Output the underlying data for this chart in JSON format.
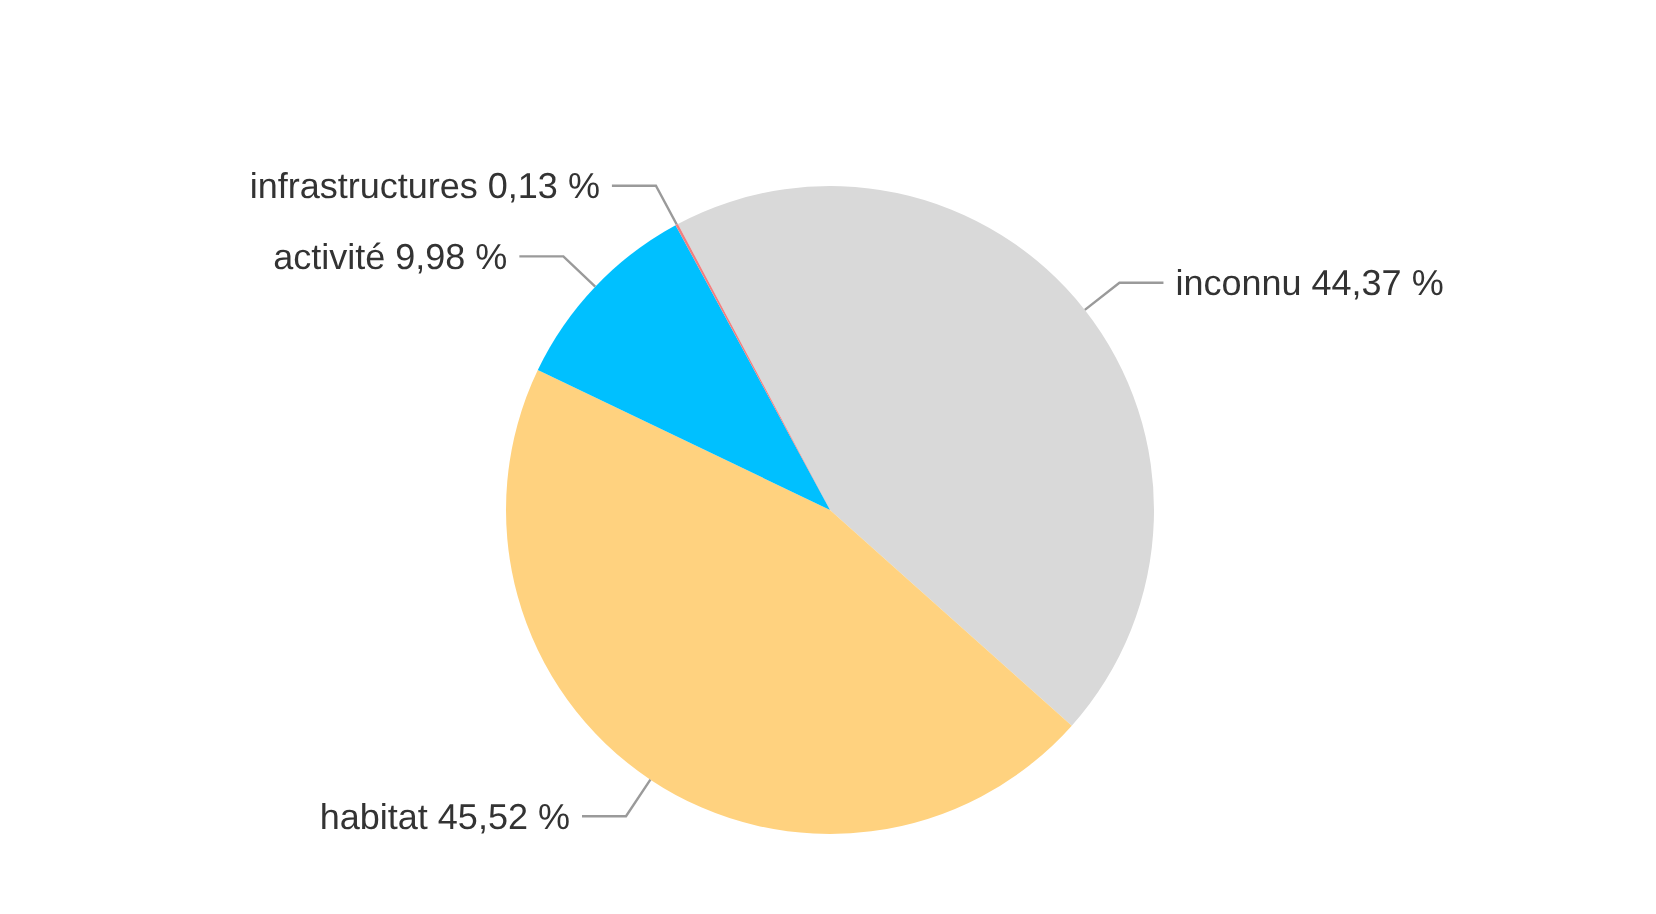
{
  "chart_data": {
    "type": "pie",
    "categories": [
      "inconnu",
      "habitat",
      "activité",
      "infrastructures"
    ],
    "values": [
      44.37,
      45.52,
      9.98,
      0.13
    ],
    "value_labels": [
      "44,37 %",
      "45,52 %",
      "9,98 %",
      "0,13 %"
    ],
    "colors": [
      "#d9d9d9",
      "#ffd27f",
      "#00c0ff",
      "#f08080"
    ],
    "legend": false
  }
}
